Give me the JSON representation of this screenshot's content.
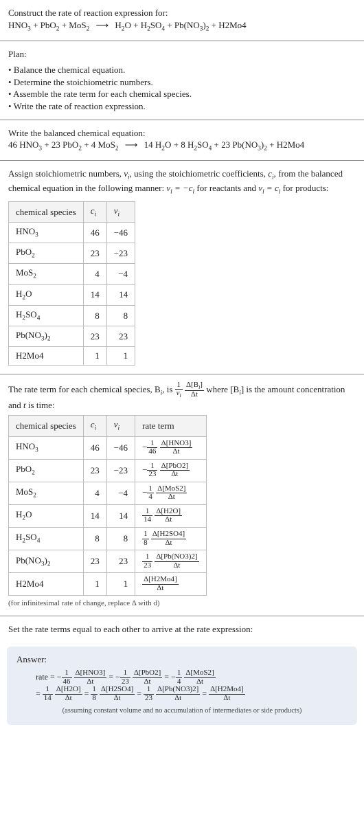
{
  "intro": {
    "title": "Construct the rate of reaction expression for:",
    "lhs": [
      "HNO_3",
      "PbO_2",
      "MoS_2"
    ],
    "rhs": [
      "H_2O",
      "H_2SO_4",
      "Pb(NO_3)_2",
      "H2Mo4"
    ]
  },
  "plan": {
    "heading": "Plan:",
    "items": [
      "Balance the chemical equation.",
      "Determine the stoichiometric numbers.",
      "Assemble the rate term for each chemical species.",
      "Write the rate of reaction expression."
    ]
  },
  "balanced": {
    "heading": "Write the balanced chemical equation:",
    "lhs": [
      {
        "coef": "46",
        "sp": "HNO_3"
      },
      {
        "coef": "23",
        "sp": "PbO_2"
      },
      {
        "coef": "4",
        "sp": "MoS_2"
      }
    ],
    "rhs": [
      {
        "coef": "14",
        "sp": "H_2O"
      },
      {
        "coef": "8",
        "sp": "H_2SO_4"
      },
      {
        "coef": "23",
        "sp": "Pb(NO_3)_2"
      },
      {
        "coef": "",
        "sp": "H2Mo4"
      }
    ]
  },
  "stoich": {
    "text_before": "Assign stoichiometric numbers, ",
    "nu": "ν_i",
    "text_mid1": ", using the stoichiometric coefficients, ",
    "ci": "c_i",
    "text_mid2": ", from the balanced chemical equation in the following manner: ",
    "rel_react": "ν_i = −c_i",
    "text_mid3": " for reactants and ",
    "rel_prod": "ν_i = c_i",
    "text_mid4": " for products:",
    "table": {
      "headers": [
        "chemical species",
        "c_i",
        "ν_i"
      ],
      "rows": [
        {
          "sp": "HNO_3",
          "ci": "46",
          "nu": "−46"
        },
        {
          "sp": "PbO_2",
          "ci": "23",
          "nu": "−23"
        },
        {
          "sp": "MoS_2",
          "ci": "4",
          "nu": "−4"
        },
        {
          "sp": "H_2O",
          "ci": "14",
          "nu": "14"
        },
        {
          "sp": "H_2SO_4",
          "ci": "8",
          "nu": "8"
        },
        {
          "sp": "Pb(NO_3)_2",
          "ci": "23",
          "nu": "23"
        },
        {
          "sp": "H2Mo4",
          "ci": "1",
          "nu": "1"
        }
      ]
    }
  },
  "rateterm": {
    "text_a": "The rate term for each chemical species, B",
    "text_b": ", is ",
    "text_c": " where [B",
    "text_d": "] is the amount concentration and ",
    "tvar": "t",
    "text_e": " is time:",
    "table": {
      "headers": [
        "chemical species",
        "c_i",
        "ν_i",
        "rate term"
      ],
      "rows": [
        {
          "sp": "HNO_3",
          "ci": "46",
          "nu": "−46",
          "sign": "−",
          "den": "46",
          "delta": "Δ[HNO3]"
        },
        {
          "sp": "PbO_2",
          "ci": "23",
          "nu": "−23",
          "sign": "−",
          "den": "23",
          "delta": "Δ[PbO2]"
        },
        {
          "sp": "MoS_2",
          "ci": "4",
          "nu": "−4",
          "sign": "−",
          "den": "4",
          "delta": "Δ[MoS2]"
        },
        {
          "sp": "H_2O",
          "ci": "14",
          "nu": "14",
          "sign": "",
          "den": "14",
          "delta": "Δ[H2O]"
        },
        {
          "sp": "H_2SO_4",
          "ci": "8",
          "nu": "8",
          "sign": "",
          "den": "8",
          "delta": "Δ[H2SO4]"
        },
        {
          "sp": "Pb(NO_3)_2",
          "ci": "23",
          "nu": "23",
          "sign": "",
          "den": "23",
          "delta": "Δ[Pb(NO3)2]"
        },
        {
          "sp": "H2Mo4",
          "ci": "1",
          "nu": "1",
          "sign": "",
          "den": "",
          "delta": "Δ[H2Mo4]"
        }
      ]
    },
    "note": "(for infinitesimal rate of change, replace Δ with d)"
  },
  "final": {
    "heading": "Set the rate terms equal to each other to arrive at the rate expression:"
  },
  "answer": {
    "label": "Answer:",
    "rate_word": "rate",
    "terms_line1": [
      {
        "sign": "−",
        "den": "46",
        "delta": "Δ[HNO3]"
      },
      {
        "sign": "−",
        "den": "23",
        "delta": "Δ[PbO2]"
      },
      {
        "sign": "−",
        "den": "4",
        "delta": "Δ[MoS2]"
      }
    ],
    "terms_line2": [
      {
        "sign": "",
        "den": "14",
        "delta": "Δ[H2O]"
      },
      {
        "sign": "",
        "den": "8",
        "delta": "Δ[H2SO4]"
      },
      {
        "sign": "",
        "den": "23",
        "delta": "Δ[Pb(NO3)2]"
      },
      {
        "sign": "",
        "den": "",
        "delta": "Δ[H2Mo4]"
      }
    ],
    "assume": "(assuming constant volume and no accumulation of intermediates or side products)"
  },
  "dt": "Δt"
}
